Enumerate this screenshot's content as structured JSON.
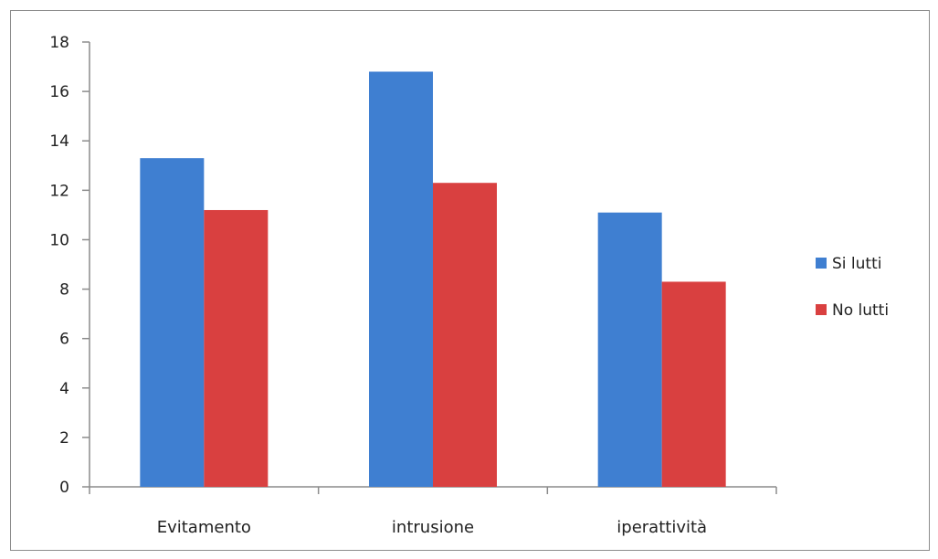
{
  "chart_data": {
    "type": "bar",
    "categories": [
      "Evitamento",
      "intrusione",
      "iperattività"
    ],
    "series": [
      {
        "name": "Si lutti",
        "values": [
          13.3,
          16.8,
          11.1
        ],
        "color": "#3f7fd1"
      },
      {
        "name": "No lutti",
        "values": [
          11.2,
          12.3,
          8.3
        ],
        "color": "#d94040"
      }
    ],
    "ylim": [
      0,
      18
    ],
    "yticks": [
      0,
      2,
      4,
      6,
      8,
      10,
      12,
      14,
      16,
      18
    ],
    "grid": false,
    "legend": "right"
  }
}
